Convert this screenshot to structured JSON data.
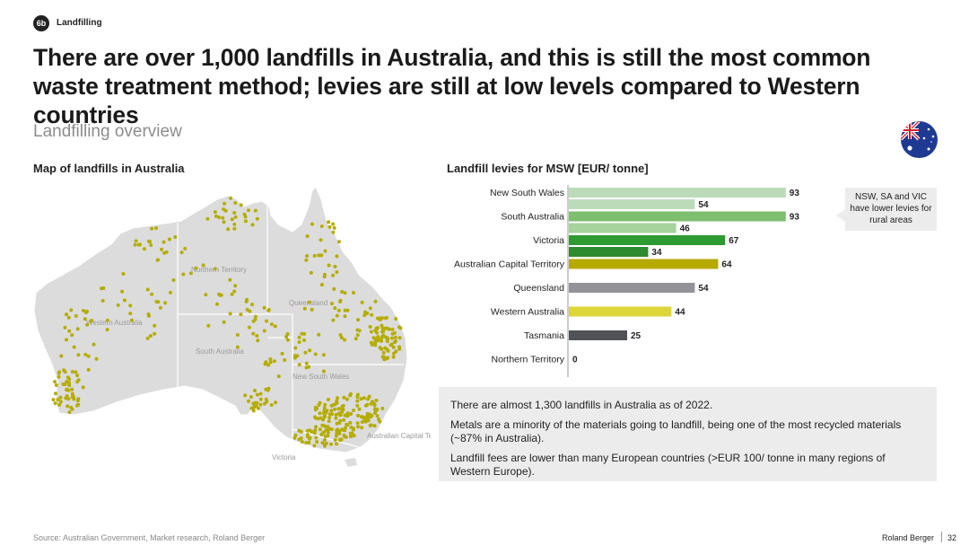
{
  "header": {
    "badge": "6b",
    "section": "Landfilling",
    "title": "There are over 1,000 landfills in Australia, and this is still the most common waste treatment method; levies are still at low levels compared to Western countries",
    "subtitle": "Landfilling overview"
  },
  "map": {
    "title": "Map of landfills in Australia",
    "regions": {
      "nt": "Northern Territory",
      "wa": "Western Australia",
      "qld": "Queensland",
      "sa": "South Australia",
      "nsw": "New South Wales",
      "act": "Australian Capital Territory",
      "vic": "Victoria"
    },
    "land_color": "#dcdcdc",
    "dot_color": "#b5ac00"
  },
  "chart_data": {
    "type": "bar",
    "orientation": "horizontal",
    "title": "Landfill levies for MSW [EUR/ tonne]",
    "categories": [
      "New South Wales",
      "South Australia",
      "Victoria",
      "Australian Capital Territory",
      "Queensland",
      "Western Australia",
      "Tasmania",
      "Northern Territory"
    ],
    "bars": [
      {
        "category": "New South Wales",
        "values": [
          93,
          54
        ],
        "colors": [
          "#bcdcb9",
          "#bcdcb9"
        ]
      },
      {
        "category": "South Australia",
        "values": [
          93,
          46
        ],
        "colors": [
          "#7dbe6f",
          "#a6d29b"
        ]
      },
      {
        "category": "Victoria",
        "values": [
          67,
          34
        ],
        "colors": [
          "#2e9a32",
          "#2e8b30"
        ]
      },
      {
        "category": "Australian Capital Territory",
        "values": [
          64
        ],
        "colors": [
          "#b6aa00"
        ]
      },
      {
        "category": "Queensland",
        "values": [
          54
        ],
        "colors": [
          "#929297"
        ]
      },
      {
        "category": "Western Australia",
        "values": [
          44
        ],
        "colors": [
          "#dcd63a"
        ]
      },
      {
        "category": "Tasmania",
        "values": [
          25
        ],
        "colors": [
          "#505256"
        ]
      },
      {
        "category": "Northern Territory",
        "values": [
          0
        ],
        "colors": [
          "#505256"
        ]
      }
    ],
    "xlim": [
      0,
      100
    ]
  },
  "callout": {
    "text": "NSW, SA and VIC have lower levies for rural areas"
  },
  "info": {
    "p1": "There are almost 1,300 landfills in Australia as of 2022.",
    "p2": "Metals are a minority of the materials going to landfill, being one of the most recycled materials (~87% in Australia).",
    "p3": "Landfill fees are lower than many European countries (>EUR 100/ tonne in many regions of Western Europe)."
  },
  "footer": {
    "source": "Source: Australian Government, Market research, Roland Berger",
    "brand": "Roland Berger",
    "page": "32"
  }
}
